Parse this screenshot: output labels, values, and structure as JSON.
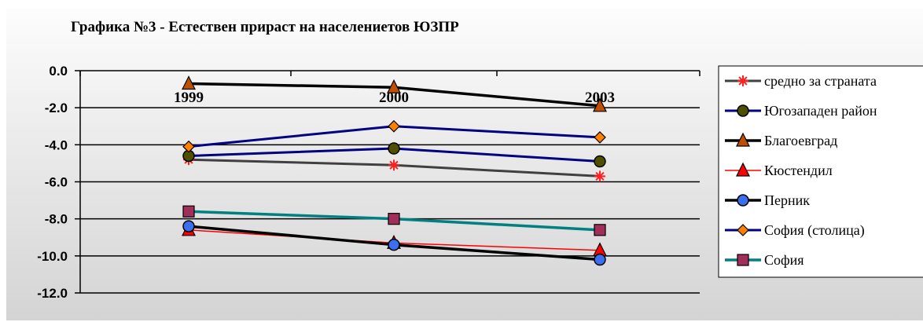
{
  "chart_data": {
    "type": "line",
    "title": "Графика №3 - Естествен прираст на населениетов ЮЗПР",
    "categories": [
      "1999",
      "2000",
      "2003"
    ],
    "ylim": [
      -12.0,
      0.0
    ],
    "yticks": [
      "0.0",
      "-2.0",
      "-4.0",
      "-6.0",
      "-8.0",
      "-10.0",
      "-12.0"
    ],
    "grid": true,
    "legend": "right",
    "series": [
      {
        "name": "средно за страната",
        "values": [
          -4.8,
          -5.1,
          -5.7
        ],
        "color": "#404040",
        "marker": "asterisk",
        "marker_color": "#ff2020",
        "width": 3
      },
      {
        "name": "Югозападен район",
        "values": [
          -4.6,
          -4.2,
          -4.9
        ],
        "color": "#000080",
        "marker": "circle",
        "marker_color": "#4f4f00",
        "width": 3
      },
      {
        "name": "Благоевград",
        "values": [
          -0.7,
          -0.9,
          -1.9
        ],
        "color": "#000000",
        "marker": "triangle",
        "marker_color": "#c05000",
        "width": 3.5
      },
      {
        "name": "Кюстендил",
        "values": [
          -8.6,
          -9.3,
          -9.7
        ],
        "color": "#ff0000",
        "marker": "triangle",
        "marker_color": "#ff0000",
        "width": 1.5
      },
      {
        "name": "Перник",
        "values": [
          -8.4,
          -9.4,
          -10.2
        ],
        "color": "#000000",
        "marker": "circle",
        "marker_color": "#3a6ff0",
        "width": 3.5
      },
      {
        "name": "София (столица)",
        "values": [
          -4.1,
          -3.0,
          -3.6
        ],
        "color": "#000080",
        "marker": "diamond",
        "marker_color": "#ff8000",
        "width": 3
      },
      {
        "name": "София",
        "values": [
          -7.6,
          -8.0,
          -8.6
        ],
        "color": "#008080",
        "marker": "square",
        "marker_color": "#a0305a",
        "width": 3.5
      }
    ]
  }
}
